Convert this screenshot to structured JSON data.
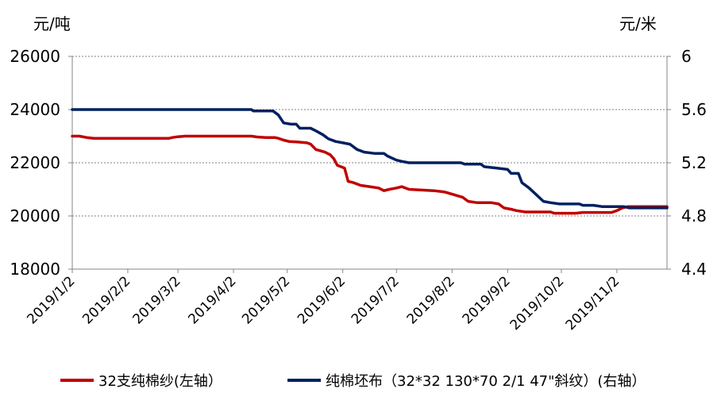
{
  "chart_data": {
    "type": "line",
    "title": "",
    "left_axis": {
      "unit": "元/吨",
      "ylim": [
        18000,
        26000
      ],
      "ticks": [
        18000,
        20000,
        22000,
        24000,
        26000
      ],
      "tick_labels": [
        "18000",
        "20000",
        "22000",
        "24000",
        "26000"
      ]
    },
    "right_axis": {
      "unit": "元/米",
      "ylim": [
        4.4,
        6.0
      ],
      "ticks": [
        4.4,
        4.8,
        5.2,
        5.6,
        6.0
      ],
      "tick_labels": [
        "4.4",
        "4.8",
        "5.2",
        "5.6",
        "6"
      ]
    },
    "x_axis": {
      "range": [
        "2019-01-02",
        "2019-11-30"
      ],
      "tick_labels": [
        "2019/1/2",
        "2019/2/2",
        "2019/3/2",
        "2019/4/2",
        "2019/5/2",
        "2019/6/2",
        "2019/7/2",
        "2019/8/2",
        "2019/9/2",
        "2019/10/2",
        "2019/11/2"
      ],
      "tick_dates": [
        "2019-01-02",
        "2019-02-02",
        "2019-03-02",
        "2019-04-02",
        "2019-05-02",
        "2019-06-02",
        "2019-07-02",
        "2019-08-02",
        "2019-09-02",
        "2019-10-02",
        "2019-11-02"
      ]
    },
    "grid": true,
    "legend_position": "bottom",
    "series": [
      {
        "name": "32支纯棉纱(左轴）",
        "axis": "left",
        "color": "#c00000",
        "points": [
          [
            "2019-01-02",
            23000
          ],
          [
            "2019-01-06",
            23000
          ],
          [
            "2019-01-10",
            22950
          ],
          [
            "2019-01-14",
            22920
          ],
          [
            "2019-02-10",
            22920
          ],
          [
            "2019-02-25",
            22920
          ],
          [
            "2019-02-27",
            22950
          ],
          [
            "2019-03-02",
            22980
          ],
          [
            "2019-03-06",
            23000
          ],
          [
            "2019-03-20",
            23000
          ],
          [
            "2019-04-05",
            23000
          ],
          [
            "2019-04-12",
            23000
          ],
          [
            "2019-04-15",
            22970
          ],
          [
            "2019-04-20",
            22950
          ],
          [
            "2019-04-25",
            22950
          ],
          [
            "2019-04-27",
            22920
          ],
          [
            "2019-04-30",
            22850
          ],
          [
            "2019-05-03",
            22800
          ],
          [
            "2019-05-08",
            22780
          ],
          [
            "2019-05-13",
            22750
          ],
          [
            "2019-05-15",
            22700
          ],
          [
            "2019-05-18",
            22500
          ],
          [
            "2019-05-23",
            22400
          ],
          [
            "2019-05-26",
            22300
          ],
          [
            "2019-05-28",
            22150
          ],
          [
            "2019-05-30",
            21900
          ],
          [
            "2019-06-03",
            21800
          ],
          [
            "2019-06-05",
            21300
          ],
          [
            "2019-06-08",
            21250
          ],
          [
            "2019-06-12",
            21150
          ],
          [
            "2019-06-17",
            21100
          ],
          [
            "2019-06-22",
            21050
          ],
          [
            "2019-06-25",
            20950
          ],
          [
            "2019-06-28",
            21000
          ],
          [
            "2019-07-02",
            21050
          ],
          [
            "2019-07-05",
            21100
          ],
          [
            "2019-07-09",
            21000
          ],
          [
            "2019-07-15",
            20980
          ],
          [
            "2019-07-23",
            20950
          ],
          [
            "2019-07-29",
            20900
          ],
          [
            "2019-08-03",
            20800
          ],
          [
            "2019-08-08",
            20700
          ],
          [
            "2019-08-11",
            20550
          ],
          [
            "2019-08-16",
            20500
          ],
          [
            "2019-08-24",
            20500
          ],
          [
            "2019-08-28",
            20450
          ],
          [
            "2019-08-31",
            20300
          ],
          [
            "2019-09-04",
            20250
          ],
          [
            "2019-09-07",
            20200
          ],
          [
            "2019-09-12",
            20150
          ],
          [
            "2019-09-26",
            20150
          ],
          [
            "2019-09-28",
            20100
          ],
          [
            "2019-10-10",
            20100
          ],
          [
            "2019-10-14",
            20130
          ],
          [
            "2019-10-30",
            20130
          ],
          [
            "2019-11-02",
            20200
          ],
          [
            "2019-11-05",
            20300
          ],
          [
            "2019-11-08",
            20350
          ],
          [
            "2019-11-30",
            20350
          ]
        ]
      },
      {
        "name": "纯棉坯布（32*32 130*70 2/1 47\"斜纹）(右轴）",
        "axis": "right",
        "color": "#002060",
        "points": [
          [
            "2019-01-02",
            5.6
          ],
          [
            "2019-04-10",
            5.6
          ],
          [
            "2019-04-12",
            5.6
          ],
          [
            "2019-04-13",
            5.59
          ],
          [
            "2019-04-24",
            5.59
          ],
          [
            "2019-04-27",
            5.56
          ],
          [
            "2019-04-30",
            5.5
          ],
          [
            "2019-05-04",
            5.49
          ],
          [
            "2019-05-07",
            5.49
          ],
          [
            "2019-05-09",
            5.46
          ],
          [
            "2019-05-15",
            5.46
          ],
          [
            "2019-05-18",
            5.44
          ],
          [
            "2019-05-22",
            5.41
          ],
          [
            "2019-05-25",
            5.38
          ],
          [
            "2019-05-29",
            5.36
          ],
          [
            "2019-06-02",
            5.35
          ],
          [
            "2019-06-06",
            5.34
          ],
          [
            "2019-06-10",
            5.3
          ],
          [
            "2019-06-14",
            5.28
          ],
          [
            "2019-06-20",
            5.27
          ],
          [
            "2019-06-25",
            5.27
          ],
          [
            "2019-06-27",
            5.25
          ],
          [
            "2019-07-02",
            5.22
          ],
          [
            "2019-07-05",
            5.21
          ],
          [
            "2019-07-09",
            5.2
          ],
          [
            "2019-07-20",
            5.2
          ],
          [
            "2019-08-07",
            5.2
          ],
          [
            "2019-08-09",
            5.19
          ],
          [
            "2019-08-18",
            5.19
          ],
          [
            "2019-08-20",
            5.17
          ],
          [
            "2019-08-27",
            5.16
          ],
          [
            "2019-09-02",
            5.15
          ],
          [
            "2019-09-04",
            5.12
          ],
          [
            "2019-09-08",
            5.12
          ],
          [
            "2019-09-10",
            5.05
          ],
          [
            "2019-09-14",
            5.01
          ],
          [
            "2019-09-18",
            4.96
          ],
          [
            "2019-09-22",
            4.91
          ],
          [
            "2019-09-26",
            4.9
          ],
          [
            "2019-10-01",
            4.89
          ],
          [
            "2019-10-12",
            4.89
          ],
          [
            "2019-10-14",
            4.88
          ],
          [
            "2019-10-20",
            4.88
          ],
          [
            "2019-10-25",
            4.87
          ],
          [
            "2019-11-06",
            4.87
          ],
          [
            "2019-11-09",
            4.86
          ],
          [
            "2019-11-30",
            4.86
          ]
        ]
      }
    ]
  }
}
